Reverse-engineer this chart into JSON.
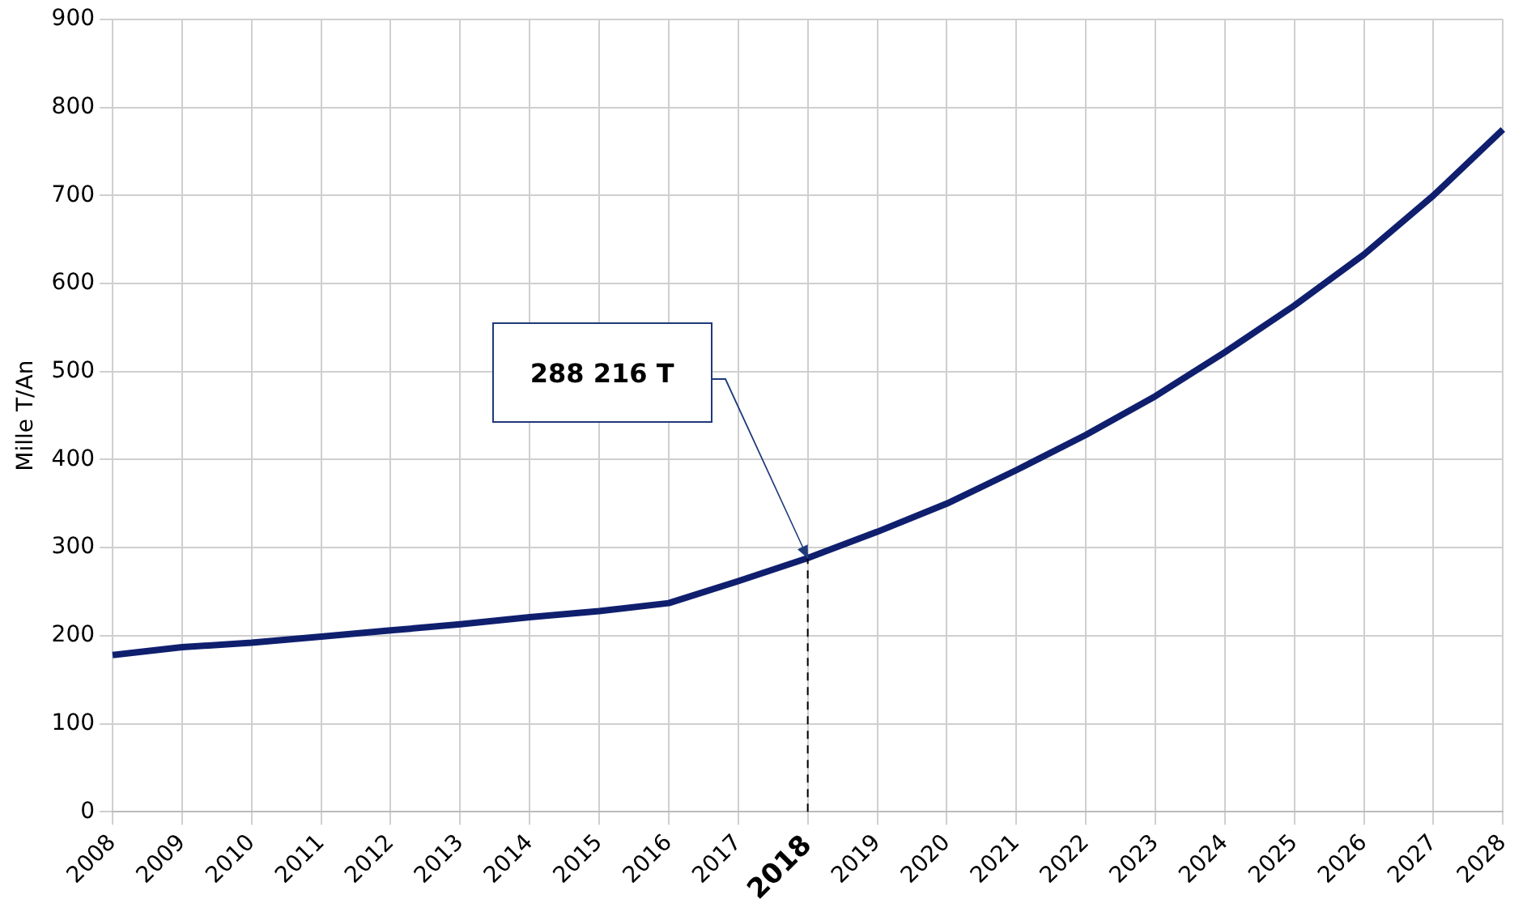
{
  "chart_data": {
    "type": "line",
    "ylabel": "Mille T/An",
    "categories": [
      "2008",
      "2009",
      "2010",
      "2011",
      "2012",
      "2013",
      "2014",
      "2015",
      "2016",
      "2017",
      "2018",
      "2019",
      "2020",
      "2021",
      "2022",
      "2023",
      "2024",
      "2025",
      "2026",
      "2027",
      "2028"
    ],
    "series": [
      {
        "color": "#0f1f6e",
        "values": [
          178,
          187,
          192,
          199,
          206,
          213,
          221,
          228,
          237,
          262,
          288.216,
          318,
          350,
          388,
          428,
          472,
          522,
          575,
          633,
          700,
          775
        ]
      }
    ],
    "ylim": [
      0,
      900
    ],
    "yticks": [
      0,
      100,
      200,
      300,
      400,
      500,
      600,
      700,
      800,
      900
    ],
    "grid": true,
    "marker": "none",
    "line_style": "solid",
    "ref_lines": [
      {
        "axis": "x",
        "value": "2018",
        "line_style": "dashed",
        "color": "#000000"
      }
    ],
    "annotations": [
      "288 216 T"
    ]
  }
}
